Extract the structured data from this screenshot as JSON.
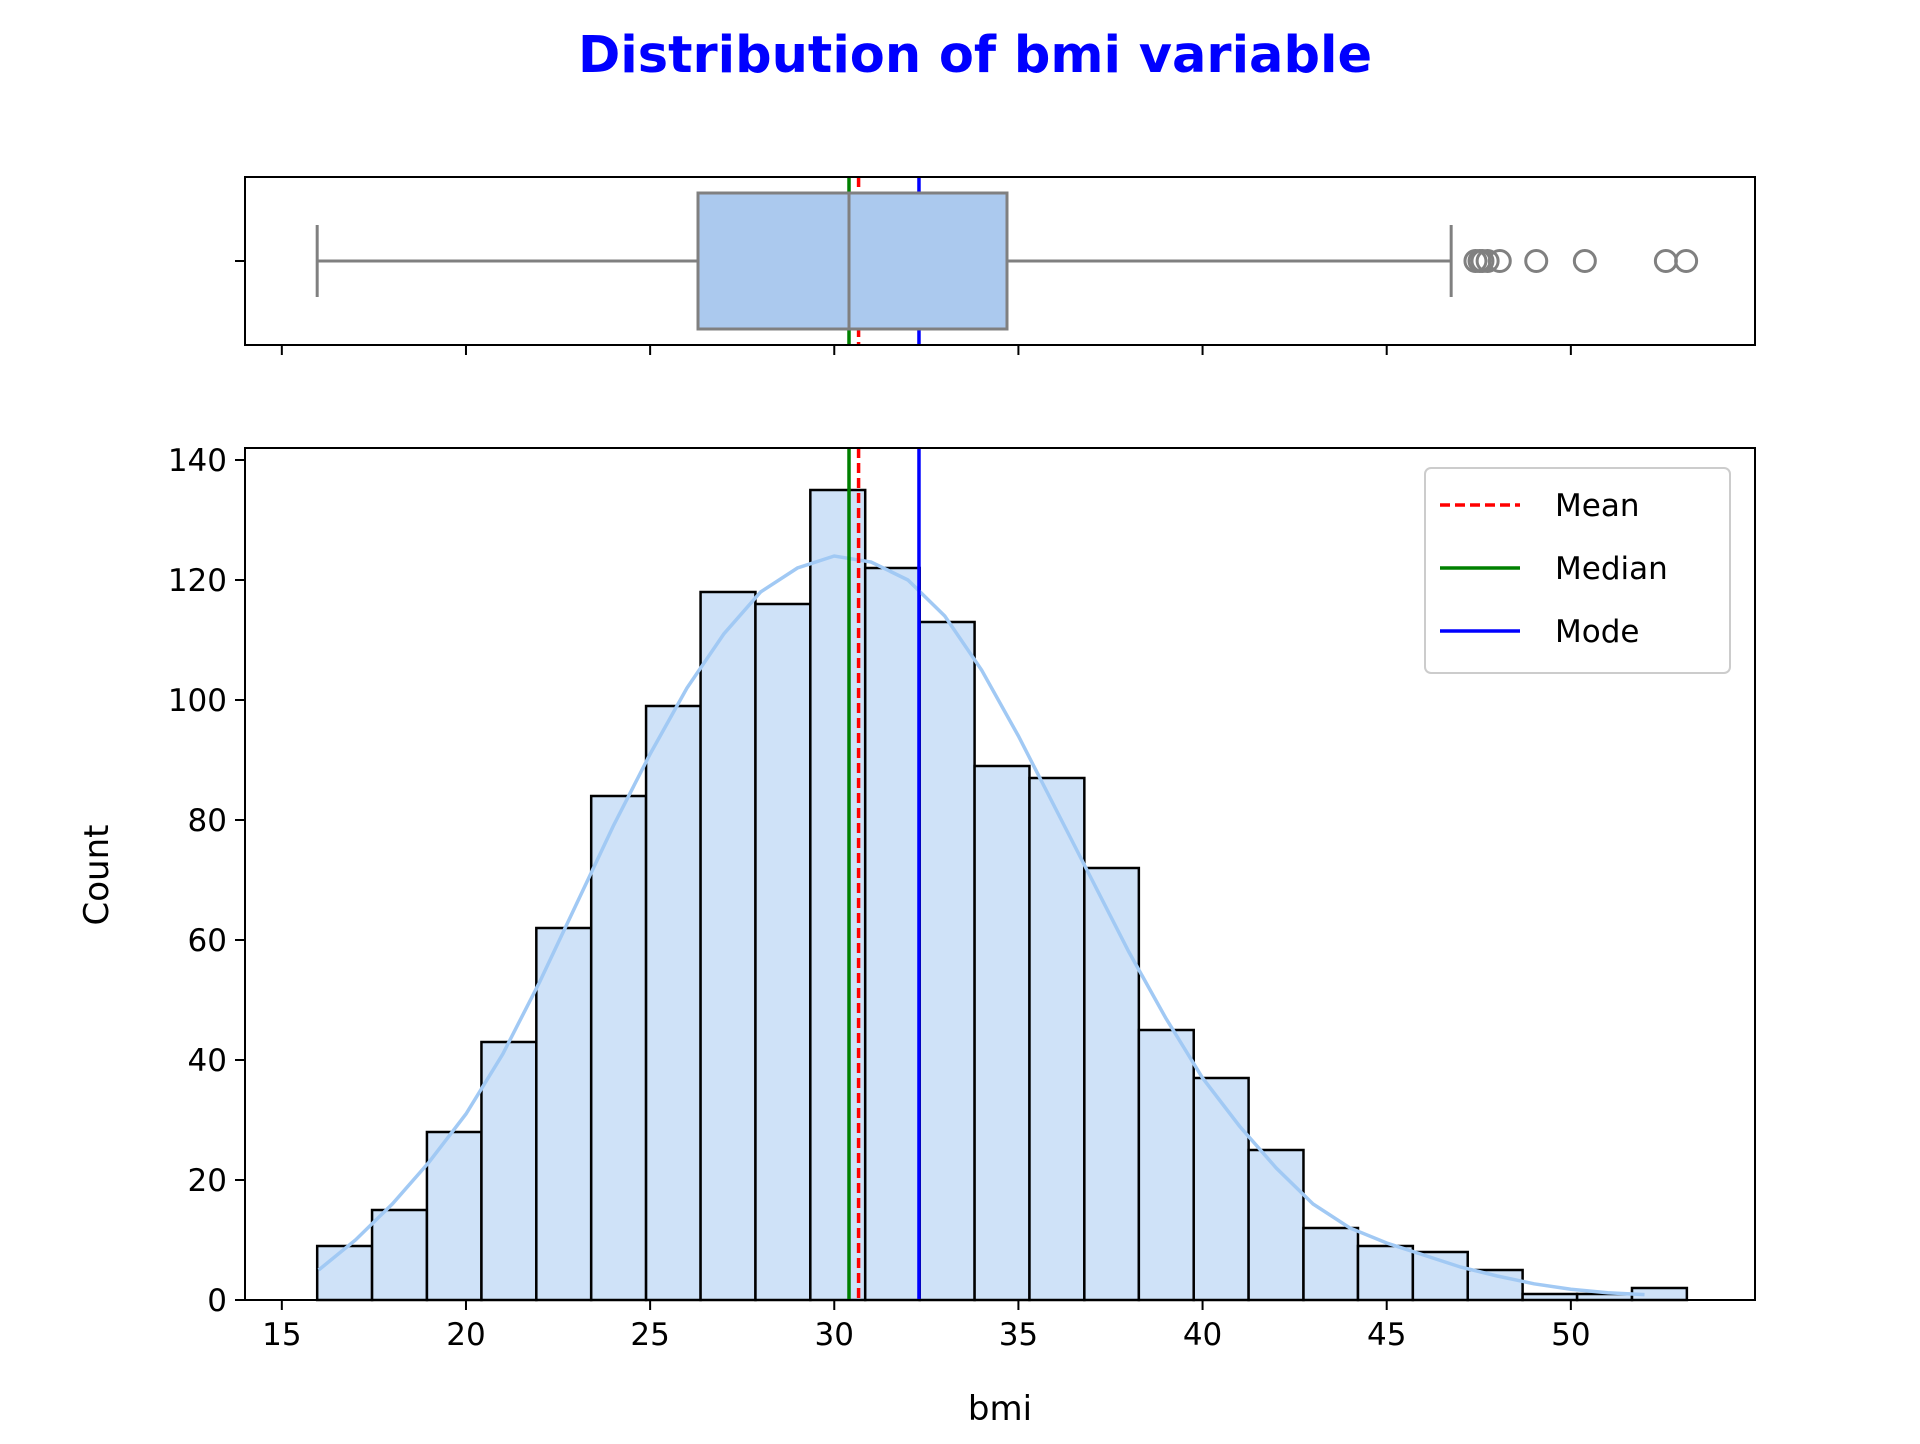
{
  "figure": {
    "title": "Distribution of bmi variable",
    "title_color": "#0000ff"
  },
  "colors": {
    "box_fill": "#abc9ee",
    "box_edge": "#808080",
    "hist_fill": "#cfe2f8",
    "hist_edge": "#000000",
    "kde": "#a1c9f4",
    "mean": "#ff0000",
    "median": "#008000",
    "mode": "#0000ff"
  },
  "chart_data": [
    {
      "type": "box",
      "variable": "bmi",
      "xlim": [
        14,
        55
      ],
      "whisker_low": 15.96,
      "q1": 26.3,
      "median": 30.4,
      "q3": 34.69,
      "whisker_high": 46.75,
      "outliers": [
        47.41,
        47.52,
        47.6,
        47.74,
        48.07,
        49.06,
        50.38,
        52.58,
        53.13
      ],
      "mean": 30.66,
      "mode": 32.3
    },
    {
      "type": "histogram",
      "xlabel": "bmi",
      "ylabel": "Count",
      "xlim": [
        14,
        55
      ],
      "ylim": [
        0,
        142
      ],
      "xticks": [
        15,
        20,
        25,
        30,
        35,
        40,
        45,
        50
      ],
      "yticks": [
        0,
        20,
        40,
        60,
        80,
        100,
        120,
        140
      ],
      "bin_edges": [
        15.96,
        17.45,
        18.94,
        20.42,
        21.91,
        23.4,
        24.89,
        26.37,
        27.86,
        29.35,
        30.84,
        32.32,
        33.81,
        35.3,
        36.79,
        38.27,
        39.76,
        41.25,
        42.74,
        44.22,
        45.71,
        47.2,
        48.69,
        50.17,
        51.66,
        53.15
      ],
      "counts": [
        9,
        15,
        28,
        43,
        62,
        84,
        99,
        118,
        116,
        135,
        122,
        113,
        89,
        87,
        72,
        45,
        37,
        25,
        12,
        9,
        8,
        5,
        1,
        1,
        2
      ],
      "kde": {
        "x": [
          16,
          17,
          18,
          19,
          20,
          21,
          22,
          23,
          24,
          25,
          26,
          27,
          28,
          29,
          30,
          31,
          32,
          33,
          34,
          35,
          36,
          37,
          38,
          39,
          40,
          41,
          42,
          43,
          44,
          45,
          46,
          47,
          48,
          49,
          50,
          51,
          52
        ],
        "y": [
          5,
          10,
          16,
          23,
          31,
          41,
          53,
          66,
          79,
          91,
          102,
          111,
          118,
          122,
          124,
          123,
          120,
          114,
          105,
          94,
          82,
          70,
          58,
          47,
          37,
          29,
          22,
          16,
          12,
          9.5,
          7.5,
          5.5,
          4,
          2.7,
          1.8,
          1.2,
          0.9
        ]
      },
      "reference_lines": [
        {
          "name": "Mean",
          "x": 30.66,
          "style": "dashed",
          "color": "#ff0000"
        },
        {
          "name": "Median",
          "x": 30.4,
          "style": "solid",
          "color": "#008000"
        },
        {
          "name": "Mode",
          "x": 32.3,
          "style": "solid",
          "color": "#0000ff"
        }
      ],
      "legend": {
        "position": "top-right",
        "entries": [
          "Mean",
          "Median",
          "Mode"
        ]
      }
    }
  ]
}
